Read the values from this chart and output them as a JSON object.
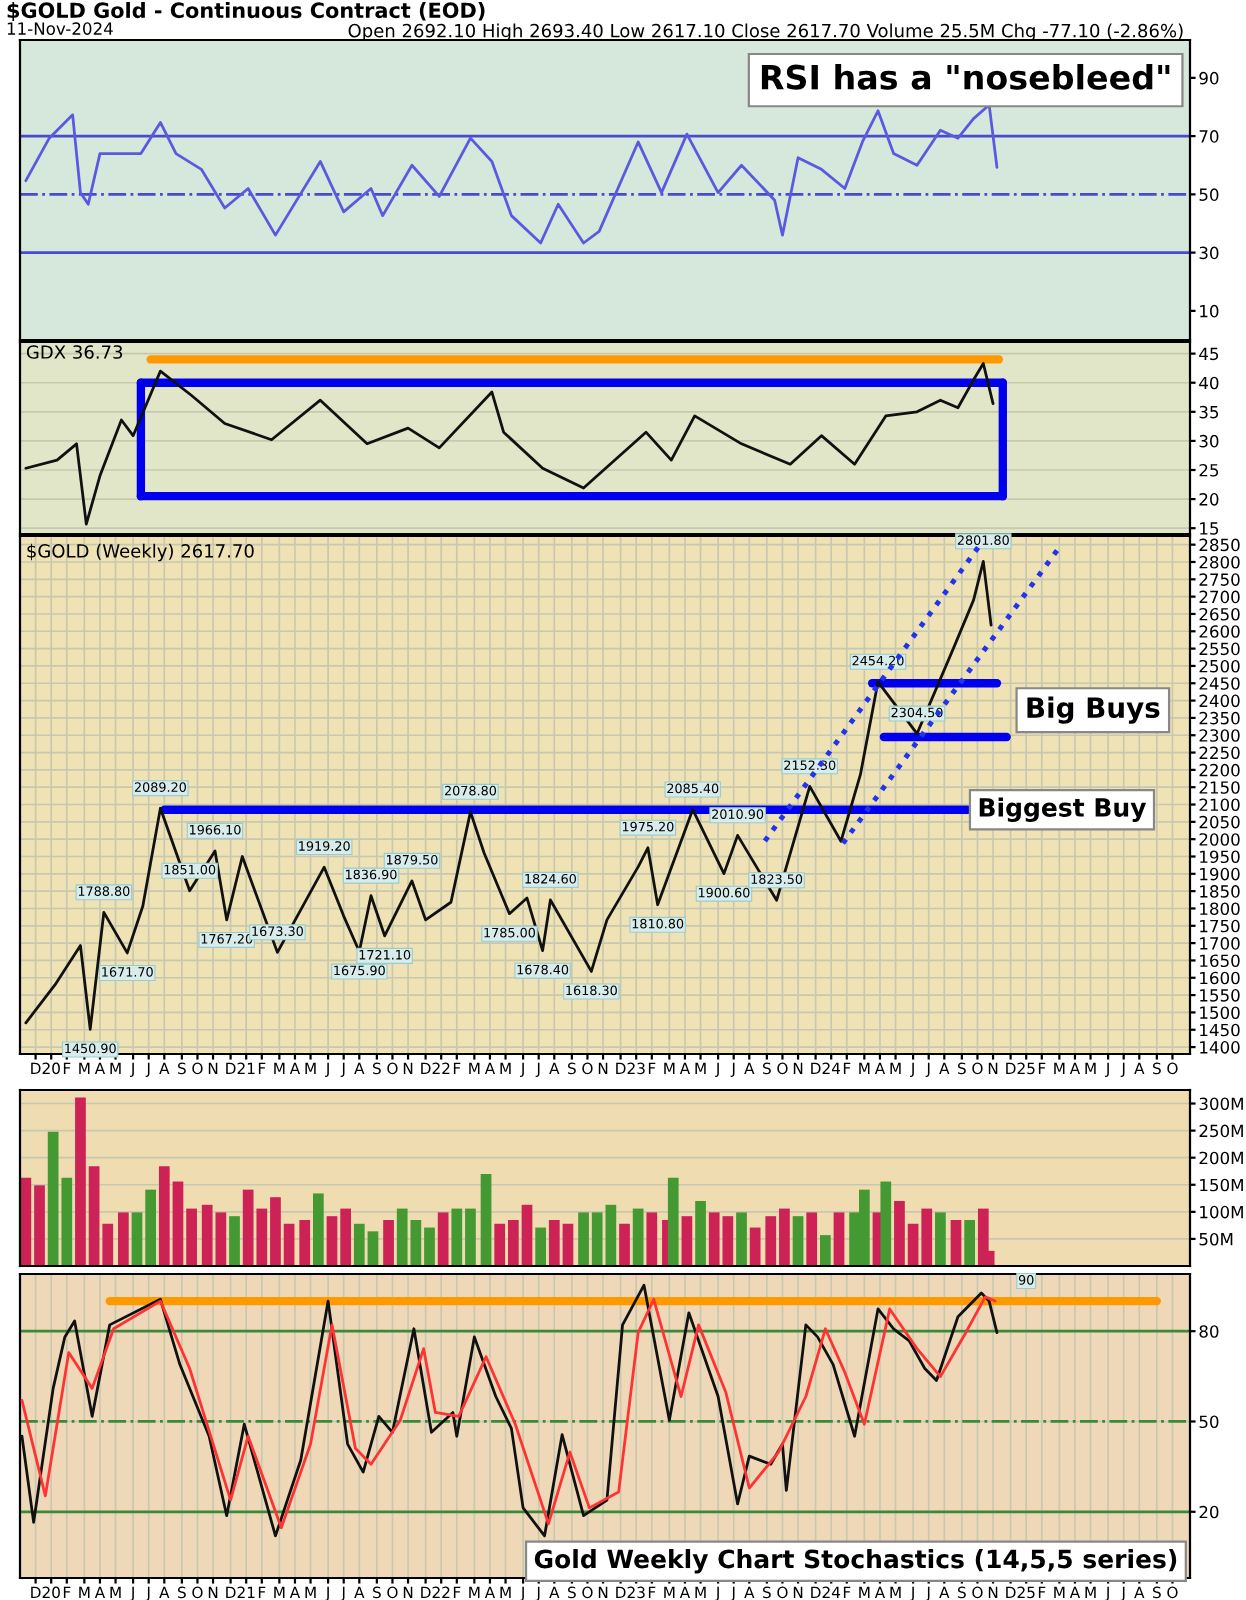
{
  "chart_data": [
    {
      "type": "line",
      "title": "$GOLD Gold - Continuous Contract (EOD)",
      "subtitle": "11-Nov-2024",
      "annotations": [
        "Open 2692.10 High 2693.40 Low 2617.10 Close 2617.70 Volume 25.5M Chg -77.10 (-2.86%)",
        "RSI has a \"nosebleed\""
      ],
      "xlim": [
        2019.84,
        2025.84
      ],
      "ylim": [
        0,
        103
      ],
      "yticks": [
        10,
        30,
        50,
        70,
        90
      ],
      "tick_labels": "y",
      "ref_lines": [
        {
          "axis": "y",
          "value": 70,
          "color": "#4a4ad0",
          "line_style": "solid"
        },
        {
          "axis": "y",
          "value": 50,
          "color": "#4a4ad0",
          "line_style": "dashdot"
        },
        {
          "axis": "y",
          "value": 30,
          "color": "#4a4ad0",
          "line_style": "solid"
        }
      ],
      "series": [
        {
          "color": "#5a5ae0",
          "x": [
            2019.87,
            2019.99,
            2020.11,
            2020.15,
            2020.19,
            2020.25,
            2020.46,
            2020.56,
            2020.64,
            2020.77,
            2020.89,
            2021.01,
            2021.15,
            2021.38,
            2021.5,
            2021.64,
            2021.7,
            2021.85,
            2021.99,
            2022.15,
            2022.26,
            2022.36,
            2022.51,
            2022.6,
            2022.73,
            2022.81,
            2023.01,
            2023.13,
            2023.26,
            2023.42,
            2023.54,
            2023.71,
            2023.75,
            2023.83,
            2023.95,
            2024.07,
            2024.16,
            2024.24,
            2024.32,
            2024.44,
            2024.56,
            2024.65,
            2024.73,
            2024.81,
            2024.85
          ],
          "values": [
            54.7,
            69.3,
            77.3,
            50.6,
            46.6,
            64,
            64,
            74.7,
            64,
            58.6,
            45.3,
            52,
            36,
            61.3,
            44,
            52,
            42.7,
            60,
            49.3,
            69.3,
            61.3,
            42.7,
            33.3,
            46.6,
            33.3,
            37.3,
            68,
            50.6,
            70.7,
            50.6,
            60,
            48,
            36,
            62.6,
            58.6,
            52,
            68,
            78.7,
            64,
            60,
            72,
            69.3,
            76,
            80.7,
            59.3
          ]
        }
      ]
    },
    {
      "type": "line",
      "title": "GDX 36.73",
      "xlim": [
        2019.84,
        2025.84
      ],
      "ylim": [
        14,
        47
      ],
      "yticks": [
        15,
        20,
        25,
        30,
        35,
        40,
        45
      ],
      "grid": "y",
      "tick_labels": "y",
      "series": [
        {
          "color": "#111111",
          "x": [
            2019.87,
            2020.03,
            2020.13,
            2020.18,
            2020.25,
            2020.36,
            2020.42,
            2020.56,
            2020.72,
            2020.89,
            2021.13,
            2021.38,
            2021.62,
            2021.83,
            2021.99,
            2022.26,
            2022.32,
            2022.52,
            2022.73,
            2023.05,
            2023.18,
            2023.3,
            2023.54,
            2023.79,
            2023.95,
            2024.12,
            2024.28,
            2024.44,
            2024.56,
            2024.65,
            2024.73,
            2024.78,
            2024.83
          ],
          "values": [
            25.3,
            26.7,
            29.5,
            15.7,
            24,
            33.6,
            30.9,
            42,
            37.8,
            33,
            30.2,
            37,
            29.5,
            32.2,
            28.8,
            38.4,
            31.5,
            25.3,
            21.9,
            31.5,
            26.7,
            34.3,
            29.5,
            26,
            30.9,
            26,
            34.3,
            35,
            37,
            35.7,
            40.5,
            43.3,
            36.4
          ]
        },
        {
          "color": "#0000ee",
          "x": [
            2020.46,
            2024.88
          ],
          "values": [
            40,
            40
          ]
        },
        {
          "color": "#0000ee",
          "x": [
            2020.46,
            2024.88
          ],
          "values": [
            20.5,
            20.5
          ]
        },
        {
          "color": "#0000ee",
          "x": [
            2020.46,
            2020.46
          ],
          "values": [
            20.5,
            40
          ]
        },
        {
          "color": "#0000ee",
          "x": [
            2024.88,
            2024.88
          ],
          "values": [
            20.5,
            40
          ]
        },
        {
          "color": "#ff9900",
          "x": [
            2020.51,
            2024.86
          ],
          "values": [
            44,
            44
          ]
        }
      ]
    },
    {
      "type": "line",
      "title": "$GOLD (Weekly) 2617.70",
      "xlim": [
        2019.84,
        2025.84
      ],
      "ylim": [
        1380,
        2875
      ],
      "yticks": [
        1400,
        1450,
        1500,
        1550,
        1600,
        1650,
        1700,
        1750,
        1800,
        1850,
        1900,
        1950,
        2000,
        2050,
        2100,
        2150,
        2200,
        2250,
        2300,
        2350,
        2400,
        2450,
        2500,
        2550,
        2600,
        2650,
        2700,
        2750,
        2800,
        2850
      ],
      "grid": true,
      "xticks": [
        {
          "value": 2019.92,
          "label": "D"
        },
        {
          "value": 2020.0,
          "label": "20"
        },
        {
          "value": 2020.08,
          "label": "F"
        },
        {
          "value": 2020.17,
          "label": "M"
        },
        {
          "value": 2020.25,
          "label": "A"
        },
        {
          "value": 2020.33,
          "label": "M"
        },
        {
          "value": 2020.42,
          "label": "J"
        },
        {
          "value": 2020.5,
          "label": "J"
        },
        {
          "value": 2020.58,
          "label": "A"
        },
        {
          "value": 2020.67,
          "label": "S"
        },
        {
          "value": 2020.75,
          "label": "O"
        },
        {
          "value": 2020.83,
          "label": "N"
        },
        {
          "value": 2020.92,
          "label": "D"
        },
        {
          "value": 2021.0,
          "label": "21"
        },
        {
          "value": 2021.08,
          "label": "F"
        },
        {
          "value": 2021.17,
          "label": "M"
        },
        {
          "value": 2021.25,
          "label": "A"
        },
        {
          "value": 2021.33,
          "label": "M"
        },
        {
          "value": 2021.42,
          "label": "J"
        },
        {
          "value": 2021.5,
          "label": "J"
        },
        {
          "value": 2021.58,
          "label": "A"
        },
        {
          "value": 2021.67,
          "label": "S"
        },
        {
          "value": 2021.75,
          "label": "O"
        },
        {
          "value": 2021.83,
          "label": "N"
        },
        {
          "value": 2021.92,
          "label": "D"
        },
        {
          "value": 2022.0,
          "label": "22"
        },
        {
          "value": 2022.08,
          "label": "F"
        },
        {
          "value": 2022.17,
          "label": "M"
        },
        {
          "value": 2022.25,
          "label": "A"
        },
        {
          "value": 2022.33,
          "label": "M"
        },
        {
          "value": 2022.42,
          "label": "J"
        },
        {
          "value": 2022.5,
          "label": "J"
        },
        {
          "value": 2022.58,
          "label": "A"
        },
        {
          "value": 2022.67,
          "label": "S"
        },
        {
          "value": 2022.75,
          "label": "O"
        },
        {
          "value": 2022.83,
          "label": "N"
        },
        {
          "value": 2022.92,
          "label": "D"
        },
        {
          "value": 2023.0,
          "label": "23"
        },
        {
          "value": 2023.08,
          "label": "F"
        },
        {
          "value": 2023.17,
          "label": "M"
        },
        {
          "value": 2023.25,
          "label": "A"
        },
        {
          "value": 2023.33,
          "label": "M"
        },
        {
          "value": 2023.42,
          "label": "J"
        },
        {
          "value": 2023.5,
          "label": "J"
        },
        {
          "value": 2023.58,
          "label": "A"
        },
        {
          "value": 2023.67,
          "label": "S"
        },
        {
          "value": 2023.75,
          "label": "O"
        },
        {
          "value": 2023.83,
          "label": "N"
        },
        {
          "value": 2023.92,
          "label": "D"
        },
        {
          "value": 2024.0,
          "label": "24"
        },
        {
          "value": 2024.08,
          "label": "F"
        },
        {
          "value": 2024.17,
          "label": "M"
        },
        {
          "value": 2024.25,
          "label": "A"
        },
        {
          "value": 2024.33,
          "label": "M"
        },
        {
          "value": 2024.42,
          "label": "J"
        },
        {
          "value": 2024.5,
          "label": "J"
        },
        {
          "value": 2024.58,
          "label": "A"
        },
        {
          "value": 2024.67,
          "label": "S"
        },
        {
          "value": 2024.75,
          "label": "O"
        },
        {
          "value": 2024.83,
          "label": "N"
        },
        {
          "value": 2024.92,
          "label": "D"
        },
        {
          "value": 2025.0,
          "label": "25"
        },
        {
          "value": 2025.08,
          "label": "F"
        },
        {
          "value": 2025.17,
          "label": "M"
        },
        {
          "value": 2025.25,
          "label": "A"
        },
        {
          "value": 2025.33,
          "label": "M"
        },
        {
          "value": 2025.42,
          "label": "J"
        },
        {
          "value": 2025.5,
          "label": "J"
        },
        {
          "value": 2025.58,
          "label": "A"
        },
        {
          "value": 2025.67,
          "label": "S"
        },
        {
          "value": 2025.75,
          "label": "O"
        }
      ],
      "annotations": [
        {
          "text": "1450.90",
          "x": 2020.2,
          "y": 1450.9
        },
        {
          "text": "1788.80",
          "x": 2020.27,
          "y": 1788.8
        },
        {
          "text": "1671.70",
          "x": 2020.39,
          "y": 1671.7
        },
        {
          "text": "2089.20",
          "x": 2020.56,
          "y": 2089.2
        },
        {
          "text": "1851.00",
          "x": 2020.71,
          "y": 1851
        },
        {
          "text": "1966.10",
          "x": 2020.84,
          "y": 1966.1
        },
        {
          "text": "1767.20",
          "x": 2020.9,
          "y": 1767.2
        },
        {
          "text": "1673.30",
          "x": 2021.16,
          "y": 1673.3
        },
        {
          "text": "1919.20",
          "x": 2021.4,
          "y": 1919.2
        },
        {
          "text": "1675.90",
          "x": 2021.58,
          "y": 1675.9
        },
        {
          "text": "1836.90",
          "x": 2021.64,
          "y": 1836.9
        },
        {
          "text": "1721.10",
          "x": 2021.71,
          "y": 1721.1
        },
        {
          "text": "1879.50",
          "x": 2021.85,
          "y": 1879.5
        },
        {
          "text": "2078.80",
          "x": 2022.15,
          "y": 2078.8
        },
        {
          "text": "1785.00",
          "x": 2022.35,
          "y": 1785
        },
        {
          "text": "1678.40",
          "x": 2022.52,
          "y": 1678.4
        },
        {
          "text": "1824.60",
          "x": 2022.56,
          "y": 1824.6
        },
        {
          "text": "1618.30",
          "x": 2022.77,
          "y": 1618.3
        },
        {
          "text": "1975.20",
          "x": 2023.06,
          "y": 1975.2
        },
        {
          "text": "1810.80",
          "x": 2023.11,
          "y": 1810.8
        },
        {
          "text": "2085.40",
          "x": 2023.29,
          "y": 2085.4
        },
        {
          "text": "1900.60",
          "x": 2023.45,
          "y": 1900.6
        },
        {
          "text": "2010.90",
          "x": 2023.52,
          "y": 2010.9
        },
        {
          "text": "1823.50",
          "x": 2023.72,
          "y": 1823.5
        },
        {
          "text": "2152.30",
          "x": 2023.89,
          "y": 2152.3
        },
        {
          "text": "2454.20",
          "x": 2024.24,
          "y": 2454.2
        },
        {
          "text": "2304.50",
          "x": 2024.44,
          "y": 2304.5
        },
        {
          "text": "2801.80",
          "x": 2024.78,
          "y": 2801.8
        },
        "Big Buys",
        {
          "text": "Biggest Buy",
          "x": 2024.75,
          "y": 2085
        }
      ],
      "series": [
        {
          "color": "#111111",
          "x": [
            2019.87,
            2020.02,
            2020.15,
            2020.2,
            2020.27,
            2020.39,
            2020.47,
            2020.56,
            2020.71,
            2020.84,
            2020.9,
            2020.98,
            2021.16,
            2021.4,
            2021.5,
            2021.58,
            2021.64,
            2021.71,
            2021.85,
            2021.92,
            2022.05,
            2022.15,
            2022.22,
            2022.35,
            2022.44,
            2022.52,
            2022.56,
            2022.77,
            2022.85,
            2023.01,
            2023.06,
            2023.11,
            2023.29,
            2023.45,
            2023.52,
            2023.72,
            2023.89,
            2024.05,
            2024.15,
            2024.24,
            2024.44,
            2024.63,
            2024.73,
            2024.78,
            2024.82
          ],
          "values": [
            1470,
            1580,
            1693,
            1450.9,
            1788.8,
            1671.7,
            1807,
            2089.2,
            1851,
            1966.1,
            1767.2,
            1950,
            1673.3,
            1919.2,
            1778,
            1675.9,
            1836.9,
            1721.1,
            1879.5,
            1767,
            1818,
            2078.8,
            1960,
            1785,
            1830,
            1678.4,
            1824.6,
            1618.3,
            1767,
            1920,
            1975.2,
            1810.8,
            2085.4,
            1900.6,
            2010.9,
            1823.5,
            2152.3,
            1994,
            2187,
            2454.2,
            2304.5,
            2555,
            2690,
            2801.8,
            2617.7
          ]
        },
        {
          "color": "#0000ee",
          "x": [
            2020.58,
            2024.7
          ],
          "values": [
            2085,
            2085
          ]
        },
        {
          "color": "#0000ee",
          "x": [
            2024.21,
            2024.85
          ],
          "values": [
            2450,
            2450
          ]
        },
        {
          "color": "#0000ee",
          "x": [
            2024.27,
            2024.9
          ],
          "values": [
            2295,
            2295
          ]
        },
        {
          "color": "#2233ee",
          "line_style": "dotted",
          "x": [
            2023.66,
            2024.77
          ],
          "values": [
            1995,
            2855
          ]
        },
        {
          "color": "#2233ee",
          "line_style": "dotted",
          "x": [
            2024.06,
            2025.18
          ],
          "values": [
            1988,
            2850
          ]
        }
      ]
    },
    {
      "type": "bar",
      "xlim": [
        2019.84,
        2025.84
      ],
      "ylim": [
        0,
        325
      ],
      "yticks": [
        {
          "value": 50,
          "label": "50M"
        },
        {
          "value": 100,
          "label": "100M"
        },
        {
          "value": 150,
          "label": "150M"
        },
        {
          "value": 200,
          "label": "200M"
        },
        {
          "value": 250,
          "label": "250M"
        },
        {
          "value": 300,
          "label": "300M"
        }
      ],
      "grid": "y",
      "tick_labels": "y",
      "series": [
        {
          "x": [
            2019.87,
            2019.94,
            2020.01,
            2020.08,
            2020.15,
            2020.22,
            2020.29,
            2020.37,
            2020.44,
            2020.51,
            2020.58,
            2020.65,
            2020.72,
            2020.8,
            2020.87,
            2020.94,
            2021.01,
            2021.08,
            2021.15,
            2021.22,
            2021.3,
            2021.37,
            2021.44,
            2021.51,
            2021.58,
            2021.65,
            2021.73,
            2021.8,
            2021.87,
            2021.94,
            2022.01,
            2022.08,
            2022.15,
            2022.23,
            2022.3,
            2022.37,
            2022.44,
            2022.51,
            2022.58,
            2022.65,
            2022.73,
            2022.8,
            2022.87,
            2022.94,
            2023.01,
            2023.08,
            2023.16,
            2023.19,
            2023.26,
            2023.33,
            2023.4,
            2023.47,
            2023.54,
            2023.61,
            2023.69,
            2023.76,
            2023.83,
            2023.9,
            2023.97,
            2024.04,
            2024.12,
            2024.17,
            2024.24,
            2024.28,
            2024.35,
            2024.42,
            2024.49,
            2024.56,
            2024.64,
            2024.71,
            2024.78,
            2024.81
          ],
          "values": [
            163,
            149,
            248,
            163,
            311,
            184,
            78,
            99,
            99,
            141,
            184,
            156,
            106,
            113,
            99,
            92,
            141,
            106,
            127,
            78,
            85,
            134,
            92,
            106,
            78,
            64,
            85,
            106,
            85,
            71,
            99,
            106,
            106,
            170,
            78,
            85,
            113,
            71,
            85,
            78,
            99,
            99,
            113,
            78,
            106,
            99,
            85,
            163,
            92,
            120,
            99,
            92,
            99,
            71,
            92,
            106,
            92,
            99,
            57,
            99,
            99,
            141,
            99,
            156,
            120,
            78,
            106,
            99,
            85,
            85,
            106,
            28
          ],
          "colors": [
            "#cc2255",
            "#cc2255",
            "#449933",
            "#449933",
            "#cc2255",
            "#cc2255",
            "#cc2255",
            "#cc2255",
            "#449933",
            "#449933",
            "#cc2255",
            "#cc2255",
            "#cc2255",
            "#cc2255",
            "#cc2255",
            "#449933",
            "#cc2255",
            "#cc2255",
            "#cc2255",
            "#cc2255",
            "#cc2255",
            "#449933",
            "#cc2255",
            "#cc2255",
            "#449933",
            "#449933",
            "#cc2255",
            "#449933",
            "#449933",
            "#449933",
            "#cc2255",
            "#449933",
            "#449933",
            "#449933",
            "#cc2255",
            "#cc2255",
            "#cc2255",
            "#449933",
            "#cc2255",
            "#cc2255",
            "#449933",
            "#449933",
            "#449933",
            "#cc2255",
            "#449933",
            "#cc2255",
            "#cc2255",
            "#449933",
            "#cc2255",
            "#449933",
            "#cc2255",
            "#cc2255",
            "#449933",
            "#cc2255",
            "#cc2255",
            "#cc2255",
            "#449933",
            "#cc2255",
            "#449933",
            "#cc2255",
            "#449933",
            "#449933",
            "#cc2255",
            "#449933",
            "#cc2255",
            "#cc2255",
            "#cc2255",
            "#449933",
            "#cc2255",
            "#449933",
            "#cc2255",
            "#cc2255"
          ]
        }
      ]
    },
    {
      "type": "line",
      "xlim": [
        2019.84,
        2025.84
      ],
      "ylim": [
        -2,
        99
      ],
      "yticks": [
        20,
        50,
        80
      ],
      "grid": true,
      "xticks": [
        {
          "value": 2019.92,
          "label": "D"
        },
        {
          "value": 2020.0,
          "label": "20"
        },
        {
          "value": 2020.08,
          "label": "F"
        },
        {
          "value": 2020.17,
          "label": "M"
        },
        {
          "value": 2020.25,
          "label": "A"
        },
        {
          "value": 2020.33,
          "label": "M"
        },
        {
          "value": 2020.42,
          "label": "J"
        },
        {
          "value": 2020.5,
          "label": "J"
        },
        {
          "value": 2020.58,
          "label": "A"
        },
        {
          "value": 2020.67,
          "label": "S"
        },
        {
          "value": 2020.75,
          "label": "O"
        },
        {
          "value": 2020.83,
          "label": "N"
        },
        {
          "value": 2020.92,
          "label": "D"
        },
        {
          "value": 2021.0,
          "label": "21"
        },
        {
          "value": 2021.08,
          "label": "F"
        },
        {
          "value": 2021.17,
          "label": "M"
        },
        {
          "value": 2021.25,
          "label": "A"
        },
        {
          "value": 2021.33,
          "label": "M"
        },
        {
          "value": 2021.42,
          "label": "J"
        },
        {
          "value": 2021.5,
          "label": "J"
        },
        {
          "value": 2021.58,
          "label": "A"
        },
        {
          "value": 2021.67,
          "label": "S"
        },
        {
          "value": 2021.75,
          "label": "O"
        },
        {
          "value": 2021.83,
          "label": "N"
        },
        {
          "value": 2021.92,
          "label": "D"
        },
        {
          "value": 2022.0,
          "label": "22"
        },
        {
          "value": 2022.08,
          "label": "F"
        },
        {
          "value": 2022.17,
          "label": "M"
        },
        {
          "value": 2022.25,
          "label": "A"
        },
        {
          "value": 2022.33,
          "label": "M"
        },
        {
          "value": 2022.42,
          "label": "J"
        },
        {
          "value": 2022.5,
          "label": "J"
        },
        {
          "value": 2022.58,
          "label": "A"
        },
        {
          "value": 2022.67,
          "label": "S"
        },
        {
          "value": 2022.75,
          "label": "O"
        },
        {
          "value": 2022.83,
          "label": "N"
        },
        {
          "value": 2022.92,
          "label": "D"
        },
        {
          "value": 2023.0,
          "label": "23"
        },
        {
          "value": 2023.08,
          "label": "F"
        },
        {
          "value": 2023.17,
          "label": "M"
        },
        {
          "value": 2023.25,
          "label": "A"
        },
        {
          "value": 2023.33,
          "label": "M"
        },
        {
          "value": 2023.42,
          "label": "J"
        },
        {
          "value": 2023.5,
          "label": "J"
        },
        {
          "value": 2023.58,
          "label": "A"
        },
        {
          "value": 2023.67,
          "label": "S"
        },
        {
          "value": 2023.75,
          "label": "O"
        },
        {
          "value": 2023.83,
          "label": "N"
        },
        {
          "value": 2023.92,
          "label": "D"
        },
        {
          "value": 2024.0,
          "label": "24"
        },
        {
          "value": 2024.08,
          "label": "F"
        },
        {
          "value": 2024.17,
          "label": "M"
        },
        {
          "value": 2024.25,
          "label": "A"
        },
        {
          "value": 2024.33,
          "label": "M"
        },
        {
          "value": 2024.42,
          "label": "J"
        },
        {
          "value": 2024.5,
          "label": "J"
        },
        {
          "value": 2024.58,
          "label": "A"
        },
        {
          "value": 2024.67,
          "label": "S"
        },
        {
          "value": 2024.75,
          "label": "O"
        },
        {
          "value": 2024.83,
          "label": "N"
        },
        {
          "value": 2024.92,
          "label": "D"
        },
        {
          "value": 2025.0,
          "label": "25"
        },
        {
          "value": 2025.08,
          "label": "F"
        },
        {
          "value": 2025.17,
          "label": "M"
        },
        {
          "value": 2025.25,
          "label": "A"
        },
        {
          "value": 2025.33,
          "label": "M"
        },
        {
          "value": 2025.42,
          "label": "J"
        },
        {
          "value": 2025.5,
          "label": "J"
        },
        {
          "value": 2025.58,
          "label": "A"
        },
        {
          "value": 2025.67,
          "label": "S"
        },
        {
          "value": 2025.75,
          "label": "O"
        }
      ],
      "ref_lines": [
        {
          "axis": "y",
          "value": 80,
          "color": "#3a8a3a",
          "line_style": "solid"
        },
        {
          "axis": "y",
          "value": 50,
          "color": "#3a8a3a",
          "line_style": "dashdot"
        },
        {
          "axis": "y",
          "value": 20,
          "color": "#3a8a3a",
          "line_style": "solid"
        }
      ],
      "annotations": [
        {
          "text": "90",
          "x": 2025.0,
          "y": 90
        },
        "Gold Weekly Chart Stochastics (14,5,5 series)"
      ],
      "series": [
        {
          "color": "#111111",
          "x": [
            2019.85,
            2019.91,
            2020.01,
            2020.07,
            2020.12,
            2020.21,
            2020.3,
            2020.56,
            2020.66,
            2020.81,
            2020.9,
            2020.99,
            2021.15,
            2021.28,
            2021.42,
            2021.52,
            2021.6,
            2021.68,
            2021.75,
            2021.86,
            2021.95,
            2022.06,
            2022.08,
            2022.17,
            2022.28,
            2022.36,
            2022.42,
            2022.53,
            2022.62,
            2022.73,
            2022.85,
            2022.93,
            2023.04,
            2023.17,
            2023.27,
            2023.42,
            2023.52,
            2023.58,
            2023.69,
            2023.75,
            2023.77,
            2023.87,
            2023.93,
            2024.01,
            2024.12,
            2024.24,
            2024.32,
            2024.4,
            2024.48,
            2024.54,
            2024.65,
            2024.77,
            2024.81,
            2024.85
          ],
          "values": [
            45.1,
            16.5,
            61,
            78.1,
            83.4,
            51.7,
            82.1,
            90.6,
            68.9,
            45.1,
            18.7,
            49.1,
            12,
            37.2,
            90,
            42.5,
            33.2,
            51.7,
            46.4,
            80.8,
            46.4,
            53,
            45.1,
            78.1,
            58.3,
            47.7,
            21.3,
            12,
            45.6,
            18.7,
            23.9,
            82.1,
            95.3,
            50.4,
            86.1,
            58.3,
            22.6,
            38.5,
            35.8,
            42.5,
            27.1,
            82.1,
            78.1,
            68.9,
            45.1,
            87.4,
            80.8,
            76.8,
            67.6,
            63.6,
            84.8,
            92.7,
            90,
            79.5
          ]
        },
        {
          "color": "#ff3333",
          "x": [
            2019.85,
            2019.97,
            2020.09,
            2020.21,
            2020.32,
            2020.56,
            2020.71,
            2020.92,
            2021.01,
            2021.18,
            2021.33,
            2021.44,
            2021.56,
            2021.64,
            2021.79,
            2021.91,
            2021.97,
            2022.09,
            2022.23,
            2022.38,
            2022.55,
            2022.66,
            2022.76,
            2022.91,
            2023.01,
            2023.09,
            2023.23,
            2023.32,
            2023.46,
            2023.58,
            2023.73,
            2023.87,
            2023.97,
            2024.07,
            2024.17,
            2024.3,
            2024.44,
            2024.56,
            2024.69,
            2024.79,
            2024.84
          ],
          "values": [
            57,
            25.3,
            72.9,
            61,
            80.8,
            90,
            67.6,
            23.9,
            45.1,
            14.7,
            42.5,
            82.1,
            41.1,
            35.8,
            50.4,
            74.2,
            53,
            51.7,
            71.5,
            49.1,
            16,
            39.8,
            21.3,
            26.6,
            79.5,
            90.6,
            58.3,
            82.1,
            59.6,
            27.9,
            39.8,
            58.3,
            80.8,
            66.3,
            49.1,
            87.4,
            74.2,
            64.9,
            79.5,
            91.4,
            90
          ]
        },
        {
          "color": "#ff9900",
          "x": [
            2020.3,
            2025.67
          ],
          "values": [
            90,
            90
          ]
        }
      ]
    }
  ]
}
